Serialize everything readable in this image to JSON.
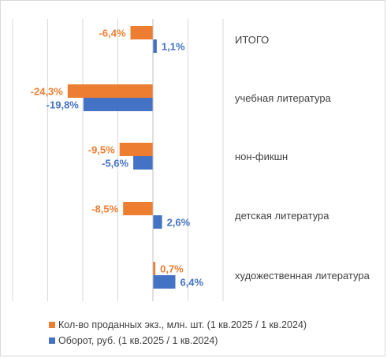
{
  "chart_data": {
    "type": "bar",
    "orientation": "horizontal",
    "categories": [
      "ИТОГО",
      "учебная литература",
      "нон-фикшн",
      "детская литература",
      "художественная литература"
    ],
    "series": [
      {
        "name": "Кол-во проданных экз., млн. шт. (1 кв.2025 / 1 кв.2024)",
        "values": [
          -6.4,
          -24.3,
          -9.5,
          -8.5,
          0.7
        ],
        "labels": [
          "-6,4%",
          "-24,3%",
          "-9,5%",
          "-8,5%",
          "0,7%"
        ],
        "color": "#ed7d31"
      },
      {
        "name": "Оборот, руб. (1 кв.2025 / 1 кв.2024)",
        "values": [
          1.1,
          -19.8,
          -5.6,
          2.6,
          6.4
        ],
        "labels": [
          "1,1%",
          "-19,8%",
          "-5,6%",
          "2,6%",
          "6,4%"
        ],
        "color": "#4472c4"
      }
    ],
    "xlim": [
      -40,
      20
    ],
    "grid": true,
    "legend_position": "bottom"
  }
}
